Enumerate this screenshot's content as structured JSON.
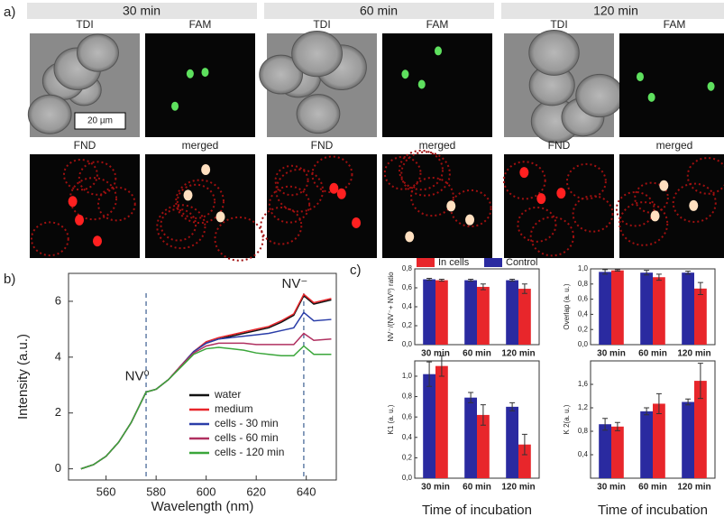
{
  "panel_labels": [
    "a)",
    "b)",
    "c)"
  ],
  "panel_a": {
    "times": [
      "30 min",
      "60 min",
      "120 min"
    ],
    "channels": [
      "TDI",
      "FAM",
      "FND",
      "merged"
    ],
    "scale_bar": "20 µm"
  },
  "chart_data": [
    {
      "type": "line",
      "xlabel": "Wavelength (nm)",
      "ylabel": "Intensity (a.u.)",
      "x": [
        550,
        555,
        560,
        565,
        570,
        576,
        580,
        585,
        590,
        595,
        600,
        605,
        610,
        615,
        620,
        625,
        630,
        635,
        639,
        643,
        650
      ],
      "xlim": [
        545,
        652
      ],
      "xticks": [
        560,
        580,
        600,
        620,
        640
      ],
      "ylim": [
        -0.4,
        7
      ],
      "yticks": [
        0,
        2,
        4,
        6
      ],
      "ref_lines": [
        576,
        639
      ],
      "annotations": [
        "NV⁰",
        "NV⁻"
      ],
      "series": [
        {
          "name": "water",
          "color": "#111111",
          "values": [
            0,
            0.15,
            0.45,
            0.95,
            1.65,
            2.75,
            2.85,
            3.2,
            3.7,
            4.2,
            4.5,
            4.65,
            4.75,
            4.85,
            4.95,
            5.05,
            5.25,
            5.5,
            6.2,
            5.9,
            6.05
          ]
        },
        {
          "name": "medium",
          "color": "#e8262b",
          "values": [
            0,
            0.15,
            0.45,
            0.95,
            1.65,
            2.75,
            2.85,
            3.2,
            3.7,
            4.2,
            4.55,
            4.7,
            4.8,
            4.9,
            5.0,
            5.1,
            5.3,
            5.55,
            6.25,
            5.95,
            6.1
          ]
        },
        {
          "name": "cells - 30 min",
          "color": "#2a3da8",
          "values": [
            0,
            0.15,
            0.45,
            0.95,
            1.65,
            2.75,
            2.85,
            3.2,
            3.7,
            4.2,
            4.5,
            4.65,
            4.7,
            4.75,
            4.8,
            4.85,
            4.95,
            5.05,
            5.6,
            5.3,
            5.35
          ]
        },
        {
          "name": "cells - 60 min",
          "color": "#b03060",
          "values": [
            0,
            0.15,
            0.45,
            0.95,
            1.65,
            2.75,
            2.85,
            3.2,
            3.7,
            4.15,
            4.4,
            4.5,
            4.5,
            4.5,
            4.45,
            4.45,
            4.45,
            4.45,
            4.85,
            4.6,
            4.65
          ]
        },
        {
          "name": "cells - 120 min",
          "color": "#3aa63a",
          "values": [
            0,
            0.15,
            0.45,
            0.95,
            1.65,
            2.75,
            2.85,
            3.2,
            3.65,
            4.1,
            4.3,
            4.35,
            4.3,
            4.25,
            4.15,
            4.1,
            4.05,
            4.05,
            4.4,
            4.1,
            4.1
          ]
        }
      ]
    },
    {
      "type": "bar",
      "ylabel": "NV⁻/(NV⁻+ NV⁰) ratio",
      "legend": true,
      "categories": [
        "30 min",
        "60 min",
        "120 min"
      ],
      "ylim": [
        0,
        0.8
      ],
      "yticks": [
        {
          "value": 0,
          "label": "0,0"
        },
        {
          "value": 0.2,
          "label": "0,2"
        },
        {
          "value": 0.4,
          "label": "0,4"
        },
        {
          "value": 0.6,
          "label": "0,6"
        },
        {
          "value": 0.8,
          "label": "0,8"
        }
      ],
      "series": [
        {
          "name": "In cells",
          "color": "#e8262b",
          "values": [
            0.68,
            0.61,
            0.59
          ],
          "errors": [
            0.01,
            0.03,
            0.05
          ]
        },
        {
          "name": "Control",
          "color": "#2a2aa0",
          "values": [
            0.69,
            0.68,
            0.68
          ],
          "errors": [
            0.01,
            0.01,
            0.01
          ]
        }
      ]
    },
    {
      "type": "bar",
      "ylabel": "Overlap (a. u.)",
      "legend": false,
      "categories": [
        "30 min",
        "60 min",
        "120 min"
      ],
      "ylim": [
        0,
        1.0
      ],
      "yticks": [
        {
          "value": 0,
          "label": "0,0"
        },
        {
          "value": 0.2,
          "label": "0,2"
        },
        {
          "value": 0.4,
          "label": "0,4"
        },
        {
          "value": 0.6,
          "label": "0,6"
        },
        {
          "value": 0.8,
          "label": "0,8"
        },
        {
          "value": 1.0,
          "label": "1,0"
        }
      ],
      "series": [
        {
          "name": "In cells",
          "color": "#e8262b",
          "values": [
            0.98,
            0.89,
            0.74
          ],
          "errors": [
            0.01,
            0.04,
            0.08
          ]
        },
        {
          "name": "Control",
          "color": "#2a2aa0",
          "values": [
            0.96,
            0.95,
            0.95
          ],
          "errors": [
            0.03,
            0.03,
            0.02
          ]
        }
      ]
    },
    {
      "type": "bar",
      "ylabel": "K1 (a. u.)",
      "xlabel": "Time of incubation",
      "legend": false,
      "categories": [
        "30 min",
        "60 min",
        "120 min"
      ],
      "ylim": [
        0,
        1.15
      ],
      "yticks": [
        {
          "value": 0,
          "label": "0,0"
        },
        {
          "value": 0.2,
          "label": "0,2"
        },
        {
          "value": 0.4,
          "label": "0,4"
        },
        {
          "value": 0.6,
          "label": "0,6"
        },
        {
          "value": 0.8,
          "label": "0,8"
        },
        {
          "value": 1.0,
          "label": "1,0"
        }
      ],
      "series": [
        {
          "name": "In cells",
          "color": "#e8262b",
          "values": [
            1.1,
            0.62,
            0.33
          ],
          "errors": [
            0.1,
            0.1,
            0.1
          ]
        },
        {
          "name": "Control",
          "color": "#2a2aa0",
          "values": [
            1.02,
            0.79,
            0.7
          ],
          "errors": [
            0.12,
            0.05,
            0.04
          ]
        }
      ]
    },
    {
      "type": "bar",
      "ylabel": "K 2(a. u.)",
      "xlabel": "Time of incubation",
      "legend": false,
      "categories": [
        "30 min",
        "60 min",
        "120 min"
      ],
      "ylim": [
        0,
        2.0
      ],
      "yticks": [
        {
          "value": 0.4,
          "label": "0,4"
        },
        {
          "value": 0.8,
          "label": "0,8"
        },
        {
          "value": 1.2,
          "label": "1,2"
        },
        {
          "value": 1.6,
          "label": "1,6"
        }
      ],
      "series": [
        {
          "name": "In cells",
          "color": "#e8262b",
          "values": [
            0.88,
            1.27,
            1.66
          ],
          "errors": [
            0.07,
            0.17,
            0.3
          ]
        },
        {
          "name": "Control",
          "color": "#2a2aa0",
          "values": [
            0.92,
            1.14,
            1.3
          ],
          "errors": [
            0.1,
            0.06,
            0.05
          ]
        }
      ]
    }
  ]
}
